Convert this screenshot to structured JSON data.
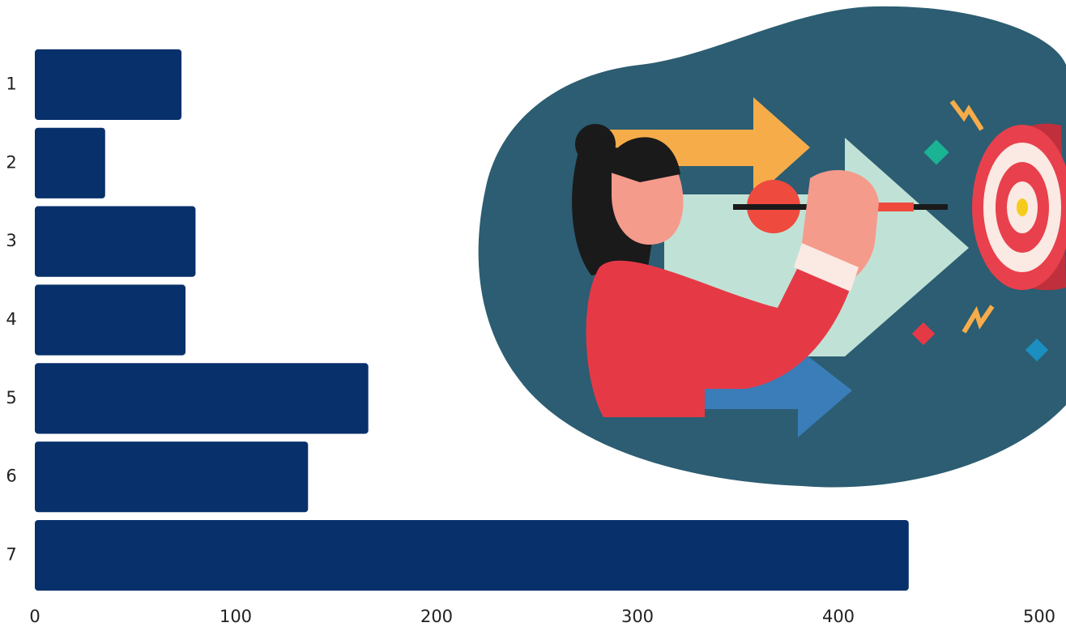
{
  "chart_data": {
    "type": "bar",
    "orientation": "horizontal",
    "categories": [
      "1",
      "2",
      "3",
      "4",
      "5",
      "6",
      "7"
    ],
    "values": [
      73,
      35,
      80,
      75,
      166,
      136,
      435
    ],
    "color": "#08306b",
    "xlim": [
      0,
      500
    ],
    "xticks": [
      0,
      100,
      200,
      300,
      400,
      500
    ],
    "grid": false
  }
}
